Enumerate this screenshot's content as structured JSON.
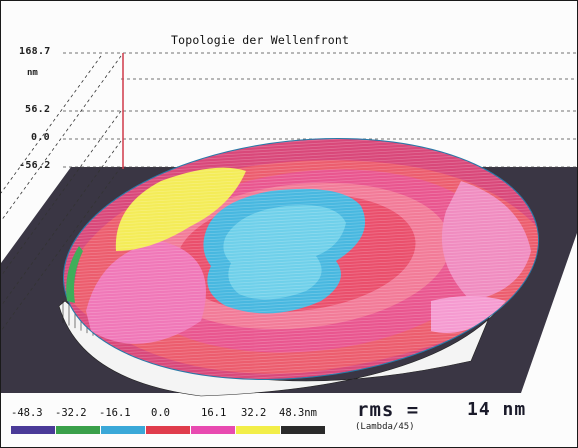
{
  "chart_data": {
    "type": "surface3d",
    "title": "Topologie der Wellenfront",
    "z_unit": "nm",
    "z_ticks": [
      "168.7",
      "56.2",
      "0.0",
      "-56.2"
    ],
    "zlim": [
      -56.2,
      168.7
    ],
    "grid": true,
    "colorscale": {
      "unit": "nm",
      "labels": [
        "-48.3",
        "-32.2",
        "-16.1",
        "0.0",
        "16.1",
        "32.2",
        "48.3nm"
      ],
      "values": [
        -48.3,
        -32.2,
        -16.1,
        0.0,
        16.1,
        32.2,
        48.3
      ],
      "colors": [
        "#4a3a98",
        "#3aa04a",
        "#3aa8d8",
        "#e03c4c",
        "#e84ab0",
        "#f2ee48",
        "#2a2a2a"
      ]
    },
    "rms": {
      "label": "rms =",
      "value": "14 nm",
      "lambda_fraction": "(Lambda/45)"
    }
  }
}
